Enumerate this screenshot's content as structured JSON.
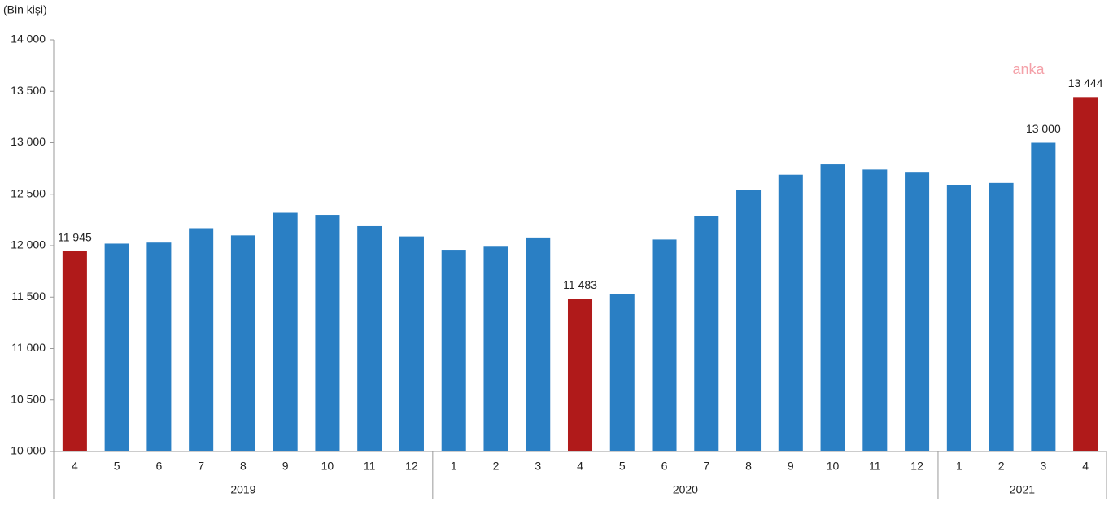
{
  "chart_data": {
    "type": "bar",
    "y_label": "(Bin kişi)",
    "watermark": "anka",
    "color": "#2a7fc4",
    "ylim": [
      10000,
      14000
    ],
    "yticks": [
      {
        "value": 10000,
        "label": "10 000"
      },
      {
        "value": 10500,
        "label": "10 500"
      },
      {
        "value": 11000,
        "label": "11 000"
      },
      {
        "value": 11500,
        "label": "11 500"
      },
      {
        "value": 12000,
        "label": "12 000"
      },
      {
        "value": 12500,
        "label": "12 500"
      },
      {
        "value": 13000,
        "label": "13 000"
      },
      {
        "value": 13500,
        "label": "13 500"
      },
      {
        "value": 14000,
        "label": "14 000"
      }
    ],
    "groups": [
      {
        "name": "2019",
        "categories": [
          "4",
          "5",
          "6",
          "7",
          "8",
          "9",
          "10",
          "11",
          "12"
        ],
        "values": [
          11945,
          12020,
          12030,
          12170,
          12100,
          12320,
          12300,
          12190,
          12090
        ],
        "value_labels": [
          "11 945",
          null,
          null,
          null,
          null,
          null,
          null,
          null,
          null
        ],
        "colors": [
          "#b01a1a",
          "#2a7fc4",
          "#2a7fc4",
          "#2a7fc4",
          "#2a7fc4",
          "#2a7fc4",
          "#2a7fc4",
          "#2a7fc4",
          "#2a7fc4"
        ]
      },
      {
        "name": "2020",
        "categories": [
          "1",
          "2",
          "3",
          "4",
          "5",
          "6",
          "7",
          "8",
          "9",
          "10",
          "11",
          "12"
        ],
        "values": [
          11960,
          11990,
          12080,
          11483,
          11530,
          12060,
          12290,
          12540,
          12690,
          12790,
          12740,
          12710
        ],
        "value_labels": [
          null,
          null,
          null,
          "11 483",
          null,
          null,
          null,
          null,
          null,
          null,
          null,
          null
        ],
        "colors": [
          "#2a7fc4",
          "#2a7fc4",
          "#2a7fc4",
          "#b01a1a",
          "#2a7fc4",
          "#2a7fc4",
          "#2a7fc4",
          "#2a7fc4",
          "#2a7fc4",
          "#2a7fc4",
          "#2a7fc4",
          "#2a7fc4"
        ]
      },
      {
        "name": "2021",
        "categories": [
          "1",
          "2",
          "3",
          "4"
        ],
        "values": [
          12590,
          12610,
          13000,
          13444
        ],
        "value_labels": [
          null,
          null,
          "13 000",
          "13 444"
        ],
        "colors": [
          "#2a7fc4",
          "#2a7fc4",
          "#2a7fc4",
          "#b01a1a"
        ]
      }
    ]
  }
}
